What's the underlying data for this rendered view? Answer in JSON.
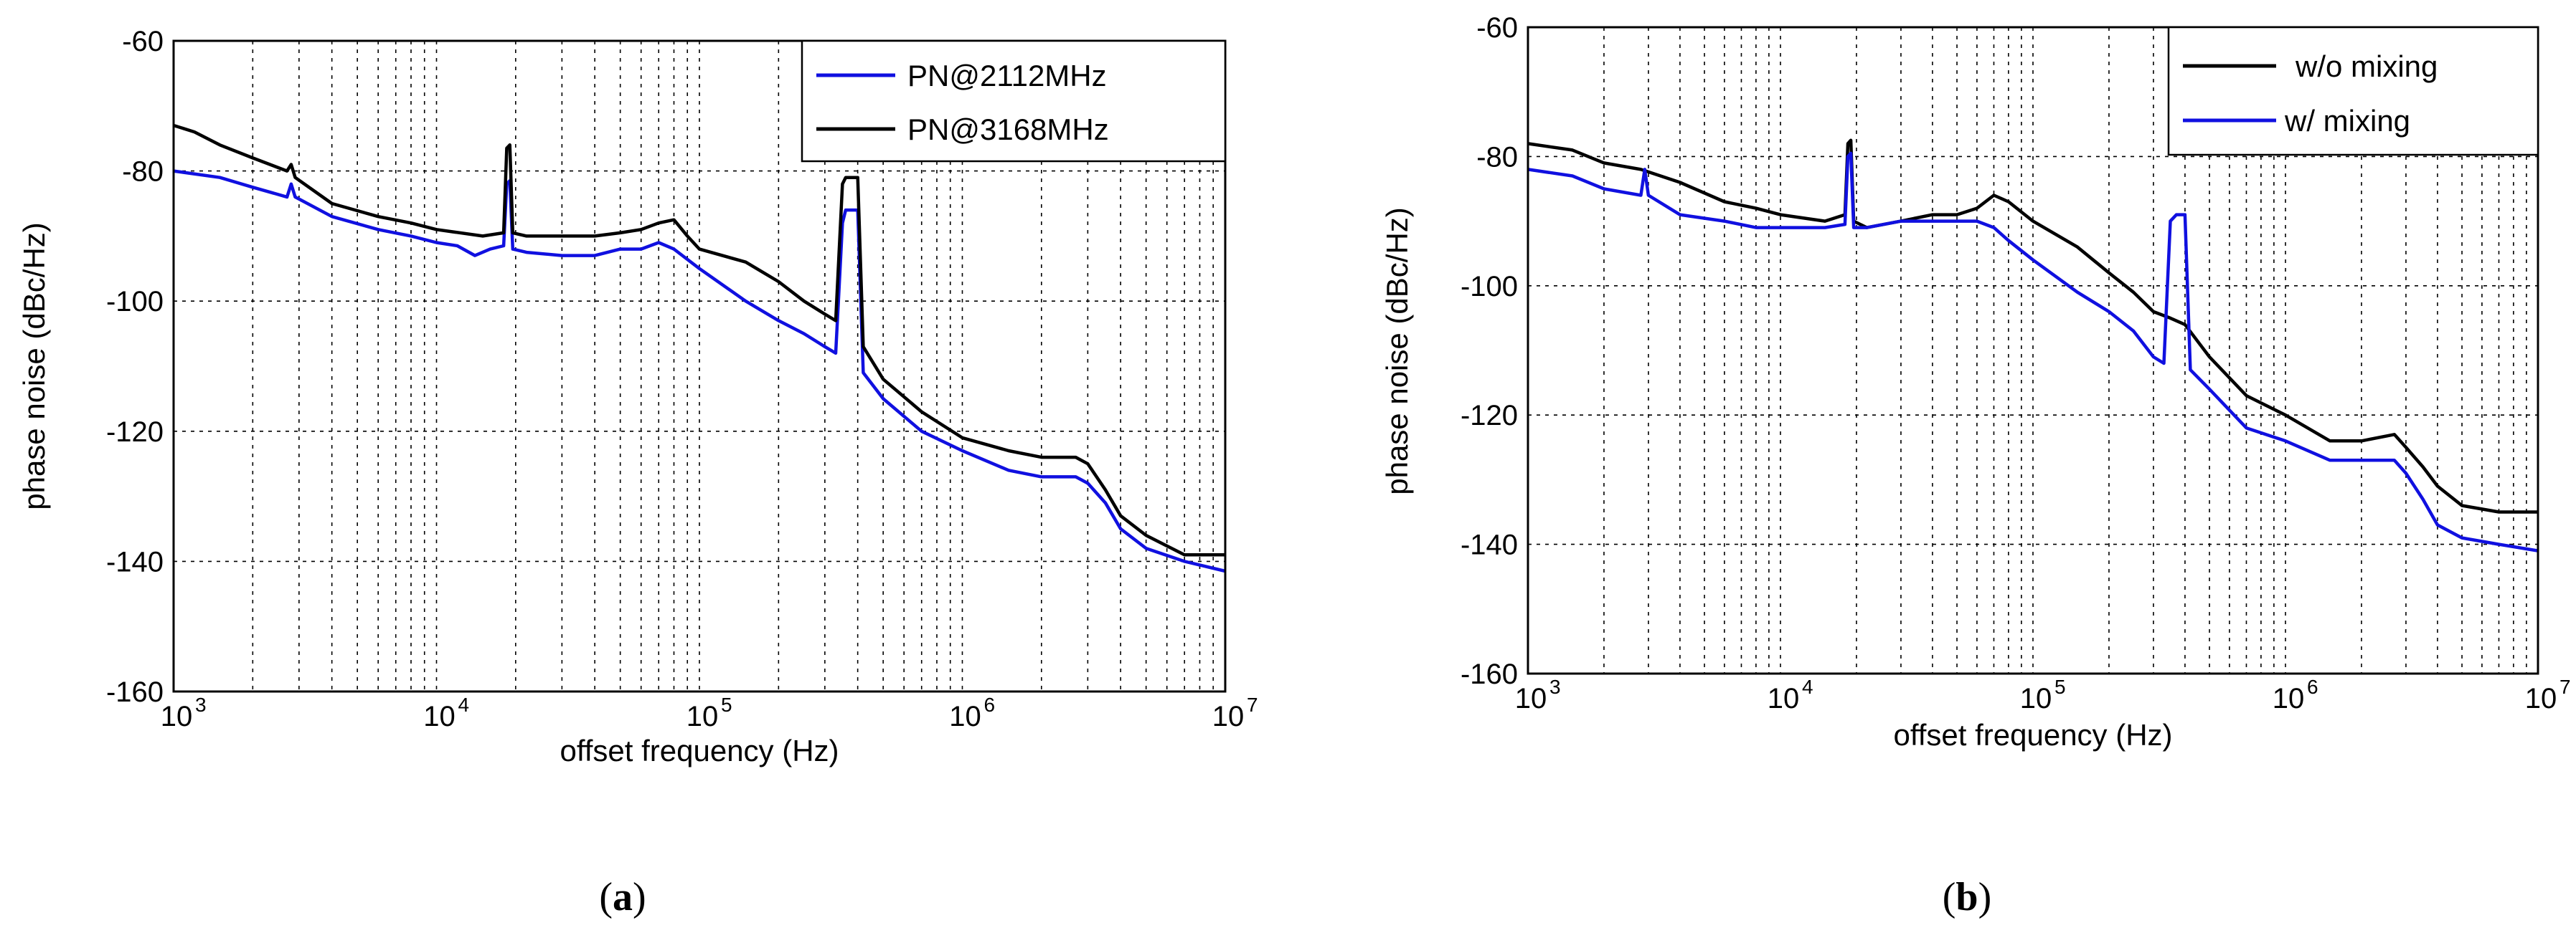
{
  "panels": [
    {
      "id": "a",
      "caption_open": "(",
      "caption_letter": "a",
      "caption_close": ")"
    },
    {
      "id": "b",
      "caption_open": "(",
      "caption_letter": "b",
      "caption_close": ")"
    }
  ],
  "chart_data": [
    {
      "type": "line",
      "panel": "a",
      "xscale": "log",
      "xlim": [
        1000,
        10000000
      ],
      "ylim": [
        -160,
        -60
      ],
      "xlabel": "offset frequency (Hz)",
      "ylabel": "phase noise (dBc/Hz)",
      "grid": true,
      "legend_position": "top-right",
      "x_ticks": [
        {
          "base": "10",
          "exp": "3"
        },
        {
          "base": "10",
          "exp": "4"
        },
        {
          "base": "10",
          "exp": "5"
        },
        {
          "base": "10",
          "exp": "6"
        },
        {
          "base": "10",
          "exp": "7"
        }
      ],
      "y_ticks": [
        "-60",
        "-80",
        "-100",
        "-120",
        "-140",
        "-160"
      ],
      "y_tick_values": [
        -60,
        -80,
        -100,
        -120,
        -140,
        -160
      ],
      "series": [
        {
          "name": "PN@2112MHz",
          "color": "#1010e0",
          "points": [
            [
              1000,
              -80
            ],
            [
              1500,
              -81
            ],
            [
              2000,
              -82.5
            ],
            [
              2700,
              -84
            ],
            [
              2800,
              -82
            ],
            [
              2900,
              -84
            ],
            [
              4000,
              -87
            ],
            [
              6000,
              -89
            ],
            [
              8000,
              -90
            ],
            [
              10000,
              -91
            ],
            [
              12000,
              -91.5
            ],
            [
              14000,
              -93
            ],
            [
              16000,
              -92
            ],
            [
              18000,
              -91.5
            ],
            [
              18500,
              -82
            ],
            [
              19000,
              -81.5
            ],
            [
              19500,
              -92
            ],
            [
              22000,
              -92.5
            ],
            [
              30000,
              -93
            ],
            [
              40000,
              -93
            ],
            [
              50000,
              -92
            ],
            [
              60000,
              -92
            ],
            [
              70000,
              -91
            ],
            [
              80000,
              -92
            ],
            [
              100000,
              -95
            ],
            [
              150000,
              -100
            ],
            [
              200000,
              -103
            ],
            [
              250000,
              -105
            ],
            [
              300000,
              -107
            ],
            [
              330000,
              -108
            ],
            [
              350000,
              -88
            ],
            [
              360000,
              -86
            ],
            [
              400000,
              -86
            ],
            [
              420000,
              -111
            ],
            [
              500000,
              -115
            ],
            [
              700000,
              -120
            ],
            [
              1000000,
              -123
            ],
            [
              1500000,
              -126
            ],
            [
              2000000,
              -127
            ],
            [
              2700000,
              -127
            ],
            [
              3000000,
              -128
            ],
            [
              3500000,
              -131
            ],
            [
              4000000,
              -135
            ],
            [
              5000000,
              -138
            ],
            [
              7000000,
              -140
            ],
            [
              10000000,
              -141.5
            ]
          ]
        },
        {
          "name": "PN@3168MHz",
          "color": "#000000",
          "points": [
            [
              1000,
              -73
            ],
            [
              1200,
              -74
            ],
            [
              1500,
              -76
            ],
            [
              2000,
              -78
            ],
            [
              2700,
              -80
            ],
            [
              2800,
              -79
            ],
            [
              2900,
              -81
            ],
            [
              4000,
              -85
            ],
            [
              6000,
              -87
            ],
            [
              8000,
              -88
            ],
            [
              10000,
              -89
            ],
            [
              15000,
              -90
            ],
            [
              18000,
              -89.5
            ],
            [
              18500,
              -76.5
            ],
            [
              19000,
              -76
            ],
            [
              19500,
              -89.5
            ],
            [
              22000,
              -90
            ],
            [
              30000,
              -90
            ],
            [
              40000,
              -90
            ],
            [
              50000,
              -89.5
            ],
            [
              60000,
              -89
            ],
            [
              70000,
              -88
            ],
            [
              80000,
              -87.5
            ],
            [
              90000,
              -90
            ],
            [
              100000,
              -92
            ],
            [
              150000,
              -94
            ],
            [
              200000,
              -97
            ],
            [
              250000,
              -100
            ],
            [
              300000,
              -102
            ],
            [
              330000,
              -103
            ],
            [
              350000,
              -82
            ],
            [
              360000,
              -81
            ],
            [
              400000,
              -81
            ],
            [
              420000,
              -107
            ],
            [
              500000,
              -112
            ],
            [
              700000,
              -117
            ],
            [
              1000000,
              -121
            ],
            [
              1500000,
              -123
            ],
            [
              2000000,
              -124
            ],
            [
              2700000,
              -124
            ],
            [
              3000000,
              -125
            ],
            [
              3500000,
              -129
            ],
            [
              4000000,
              -133
            ],
            [
              5000000,
              -136
            ],
            [
              7000000,
              -139
            ],
            [
              10000000,
              -139
            ]
          ]
        }
      ]
    },
    {
      "type": "line",
      "panel": "b",
      "xscale": "log",
      "xlim": [
        1000,
        10000000
      ],
      "ylim": [
        -160,
        -60
      ],
      "xlabel": "offset frequency (Hz)",
      "ylabel": "phase noise (dBc/Hz)",
      "grid": true,
      "legend_position": "top-right",
      "x_ticks": [
        {
          "base": "10",
          "exp": "3"
        },
        {
          "base": "10",
          "exp": "4"
        },
        {
          "base": "10",
          "exp": "5"
        },
        {
          "base": "10",
          "exp": "6"
        },
        {
          "base": "10",
          "exp": "7"
        }
      ],
      "y_ticks": [
        "-60",
        "-80",
        "-100",
        "-120",
        "-140",
        "-160"
      ],
      "y_tick_values": [
        -60,
        -80,
        -100,
        -120,
        -140,
        -160
      ],
      "series": [
        {
          "name": "w/o mixing",
          "color": "#000000",
          "points": [
            [
              1000,
              -78
            ],
            [
              1500,
              -79
            ],
            [
              2000,
              -81
            ],
            [
              2800,
              -82
            ],
            [
              4000,
              -84
            ],
            [
              6000,
              -87
            ],
            [
              8000,
              -88
            ],
            [
              10000,
              -89
            ],
            [
              15000,
              -90
            ],
            [
              18000,
              -89
            ],
            [
              18500,
              -78
            ],
            [
              19000,
              -77.5
            ],
            [
              19500,
              -90
            ],
            [
              22000,
              -91
            ],
            [
              30000,
              -90
            ],
            [
              40000,
              -89
            ],
            [
              50000,
              -89
            ],
            [
              60000,
              -88
            ],
            [
              70000,
              -86
            ],
            [
              80000,
              -87
            ],
            [
              100000,
              -90
            ],
            [
              150000,
              -94
            ],
            [
              200000,
              -98
            ],
            [
              250000,
              -101
            ],
            [
              300000,
              -104
            ],
            [
              350000,
              -105
            ],
            [
              400000,
              -106
            ],
            [
              500000,
              -111
            ],
            [
              700000,
              -117
            ],
            [
              1000000,
              -120
            ],
            [
              1500000,
              -124
            ],
            [
              2000000,
              -124
            ],
            [
              2700000,
              -123
            ],
            [
              3000000,
              -125
            ],
            [
              3500000,
              -128
            ],
            [
              4000000,
              -131
            ],
            [
              5000000,
              -134
            ],
            [
              7000000,
              -135
            ],
            [
              10000000,
              -135
            ]
          ]
        },
        {
          "name": "w/ mixing",
          "color": "#1010e0",
          "points": [
            [
              1000,
              -82
            ],
            [
              1500,
              -83
            ],
            [
              2000,
              -85
            ],
            [
              2800,
              -86
            ],
            [
              2900,
              -82
            ],
            [
              3000,
              -86
            ],
            [
              4000,
              -89
            ],
            [
              6000,
              -90
            ],
            [
              8000,
              -91
            ],
            [
              10000,
              -91
            ],
            [
              15000,
              -91
            ],
            [
              18000,
              -90.5
            ],
            [
              18500,
              -80
            ],
            [
              19000,
              -79.5
            ],
            [
              19500,
              -91
            ],
            [
              22000,
              -91
            ],
            [
              30000,
              -90
            ],
            [
              40000,
              -90
            ],
            [
              50000,
              -90
            ],
            [
              60000,
              -90
            ],
            [
              70000,
              -91
            ],
            [
              80000,
              -93
            ],
            [
              100000,
              -96
            ],
            [
              150000,
              -101
            ],
            [
              200000,
              -104
            ],
            [
              250000,
              -107
            ],
            [
              300000,
              -111
            ],
            [
              330000,
              -112
            ],
            [
              350000,
              -90
            ],
            [
              370000,
              -89
            ],
            [
              400000,
              -89
            ],
            [
              420000,
              -113
            ],
            [
              500000,
              -116
            ],
            [
              700000,
              -122
            ],
            [
              1000000,
              -124
            ],
            [
              1500000,
              -127
            ],
            [
              2000000,
              -127
            ],
            [
              2700000,
              -127
            ],
            [
              3000000,
              -129
            ],
            [
              3500000,
              -133
            ],
            [
              4000000,
              -137
            ],
            [
              5000000,
              -139
            ],
            [
              7000000,
              -140
            ],
            [
              10000000,
              -141
            ]
          ]
        }
      ]
    }
  ]
}
